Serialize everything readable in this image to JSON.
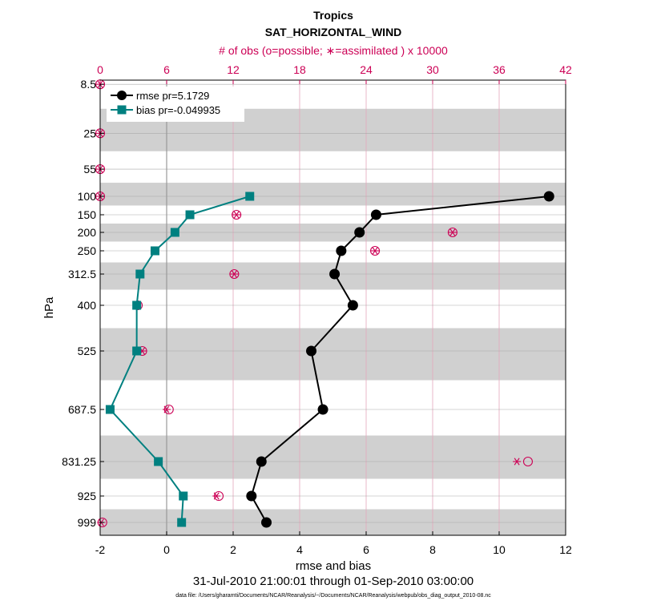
{
  "chart_data": {
    "type": "line",
    "title": "Tropics",
    "subtitle": "SAT_HORIZONTAL_WIND",
    "top_axis_label": "# of obs (o=possible; ∗=assimilated ) x 10000",
    "xlabel": "rmse and bias",
    "ylabel": "hPa",
    "date_range": "31-Jul-2010 21:00:01 through 01-Sep-2010 03:00:00",
    "footer": "data file: /Users/gharamti/Documents/NCAR/Reanalysis/~/Documents/NCAR/Reanalysis/webpub/obs_diag_output_2010-08.nc",
    "xlim": [
      -2,
      12
    ],
    "x_ticks": [
      -2,
      0,
      2,
      4,
      6,
      8,
      10,
      12
    ],
    "top_xlim": [
      0,
      42
    ],
    "top_ticks": [
      0,
      6,
      12,
      18,
      24,
      30,
      36,
      42
    ],
    "levels": [
      8.5,
      25,
      55,
      100,
      150,
      200,
      250,
      312.5,
      400,
      525,
      687.5,
      831.25,
      925,
      999
    ],
    "level_labels": [
      "8.5",
      "25",
      "55",
      "100",
      "150",
      "200",
      "250",
      "312.5",
      "400",
      "525",
      "687.5",
      "831.25",
      "925",
      "999"
    ],
    "series": [
      {
        "name": "rmse pr=5.1729",
        "color": "#000000",
        "marker": "circle",
        "levels": [
          100,
          150,
          200,
          250,
          312.5,
          400,
          525,
          687.5,
          831.25,
          925,
          999
        ],
        "values": [
          11.5,
          6.3,
          5.8,
          5.25,
          5.05,
          5.6,
          4.35,
          4.7,
          2.85,
          2.55,
          3.0
        ]
      },
      {
        "name": "bias pr=-0.049935",
        "color": "#008080",
        "marker": "square",
        "levels": [
          100,
          150,
          200,
          250,
          312.5,
          400,
          525,
          687.5,
          831.25,
          925,
          999
        ],
        "values": [
          2.5,
          0.7,
          0.25,
          -0.35,
          -0.8,
          -0.9,
          -0.9,
          -1.7,
          -0.25,
          0.5,
          0.45
        ]
      }
    ],
    "obs_counts": {
      "color": "#cc0055",
      "levels": [
        8.5,
        25,
        55,
        100,
        150,
        200,
        250,
        312.5,
        400,
        525,
        687.5,
        831.25,
        925,
        999
      ],
      "possible": [
        0,
        0,
        0,
        0,
        12.3,
        31.8,
        24.8,
        12.1,
        3.4,
        3.8,
        6.2,
        38.6,
        10.7,
        0.2
      ],
      "assimilated": [
        0,
        0,
        0,
        0,
        12.3,
        31.8,
        24.8,
        12.1,
        3.3,
        3.8,
        6.0,
        37.6,
        10.5,
        0.1
      ]
    }
  }
}
